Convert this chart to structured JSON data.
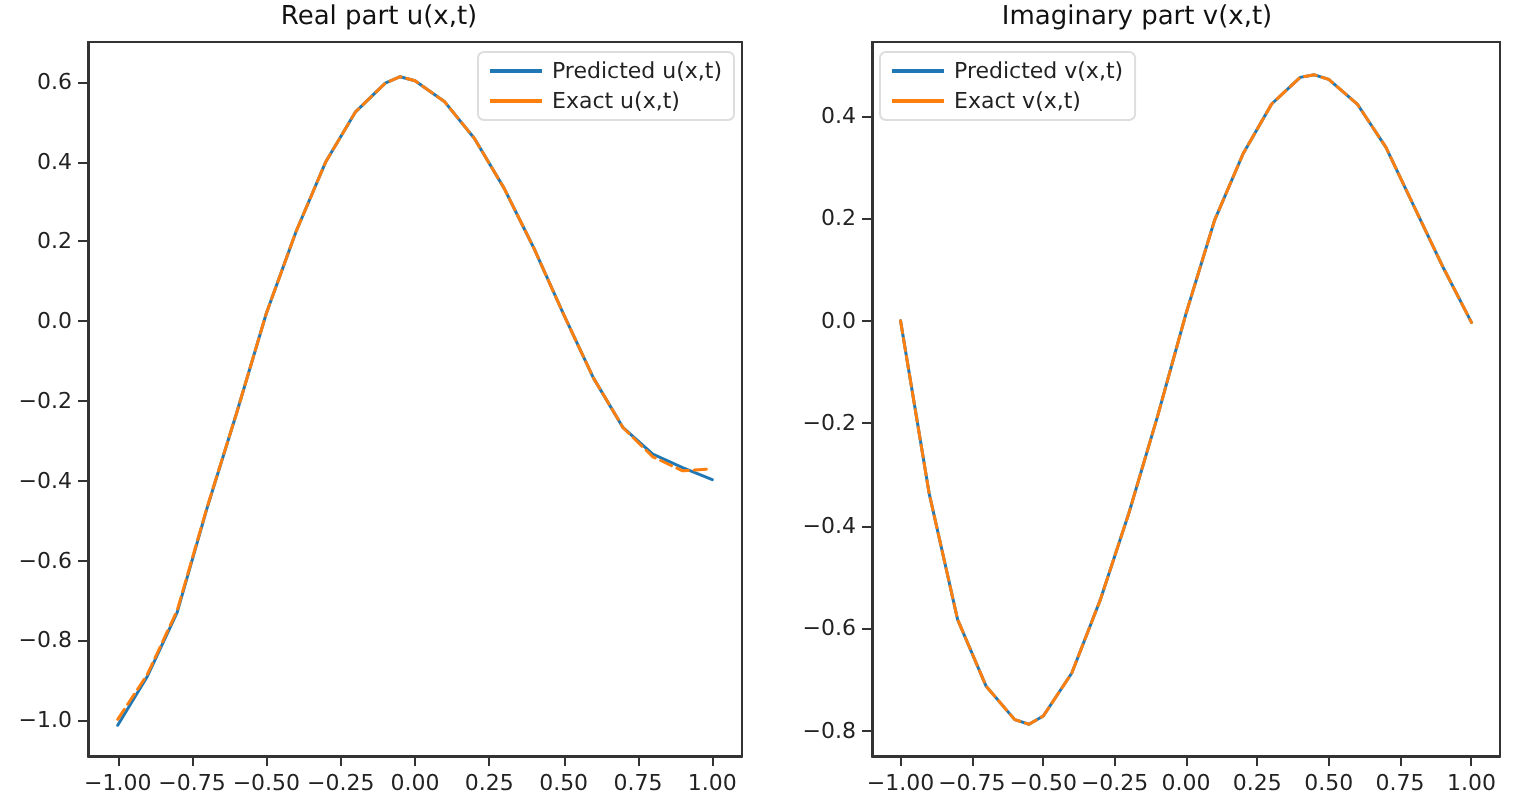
{
  "chart_data": [
    {
      "type": "line",
      "title": "Real part u(x,t)",
      "legend": "top right",
      "grid": false,
      "marker": "none",
      "xlim": [
        -1.1,
        1.1
      ],
      "ylim": [
        -1.09,
        0.7
      ],
      "xticks": [
        {
          "value": -1,
          "label": "−1.00"
        },
        {
          "value": -0.75,
          "label": "−0.75"
        },
        {
          "value": -0.5,
          "label": "−0.50"
        },
        {
          "value": -0.25,
          "label": "−0.25"
        },
        {
          "value": 0,
          "label": "0.00"
        },
        {
          "value": 0.25,
          "label": "0.25"
        },
        {
          "value": 0.5,
          "label": "0.50"
        },
        {
          "value": 0.75,
          "label": "0.75"
        },
        {
          "value": 1,
          "label": "1.00"
        }
      ],
      "yticks": [
        {
          "value": -1,
          "label": "−1.0"
        },
        {
          "value": -0.8,
          "label": "−0.8"
        },
        {
          "value": -0.6,
          "label": "−0.6"
        },
        {
          "value": -0.4,
          "label": "−0.4"
        },
        {
          "value": -0.2,
          "label": "−0.2"
        },
        {
          "value": 0,
          "label": "0.0"
        },
        {
          "value": 0.2,
          "label": "0.2"
        },
        {
          "value": 0.4,
          "label": "0.4"
        },
        {
          "value": 0.6,
          "label": "0.6"
        }
      ],
      "x": [
        -1,
        -0.9,
        -0.8,
        -0.7,
        -0.6,
        -0.5,
        -0.4,
        -0.3,
        -0.2,
        -0.1,
        -0.05,
        0,
        0.1,
        0.2,
        0.3,
        0.4,
        0.5,
        0.6,
        0.7,
        0.8,
        0.9,
        1
      ],
      "series": [
        {
          "name": "Predicted u(x,t)",
          "color": "#1f77b4",
          "line_style": "solid",
          "values": [
            -1.013,
            -0.89,
            -0.73,
            -0.47,
            -0.23,
            0.02,
            0.225,
            0.4,
            0.525,
            0.597,
            0.613,
            0.603,
            0.55,
            0.458,
            0.333,
            0.183,
            0.017,
            -0.142,
            -0.267,
            -0.333,
            -0.367,
            -0.397
          ]
        },
        {
          "name": "Exact u(x,t)",
          "color": "#ff7f0e",
          "line_style": "dashed",
          "values": [
            -0.998,
            -0.885,
            -0.725,
            -0.468,
            -0.23,
            0.02,
            0.225,
            0.4,
            0.525,
            0.597,
            0.613,
            0.603,
            0.55,
            0.458,
            0.333,
            0.183,
            0.017,
            -0.142,
            -0.267,
            -0.34,
            -0.375,
            -0.37
          ]
        }
      ]
    },
    {
      "type": "line",
      "title": "Imaginary part v(x,t)",
      "legend": "top left",
      "grid": false,
      "marker": "none",
      "xlim": [
        -1.1,
        1.1
      ],
      "ylim": [
        -0.849,
        0.544
      ],
      "xticks": [
        {
          "value": -1,
          "label": "−1.00"
        },
        {
          "value": -0.75,
          "label": "−0.75"
        },
        {
          "value": -0.5,
          "label": "−0.50"
        },
        {
          "value": -0.25,
          "label": "−0.25"
        },
        {
          "value": 0,
          "label": "0.00"
        },
        {
          "value": 0.25,
          "label": "0.25"
        },
        {
          "value": 0.5,
          "label": "0.50"
        },
        {
          "value": 0.75,
          "label": "0.75"
        },
        {
          "value": 1,
          "label": "1.00"
        }
      ],
      "yticks": [
        {
          "value": -0.8,
          "label": "−0.8"
        },
        {
          "value": -0.6,
          "label": "−0.6"
        },
        {
          "value": -0.4,
          "label": "−0.4"
        },
        {
          "value": -0.2,
          "label": "−0.2"
        },
        {
          "value": 0,
          "label": "0.0"
        },
        {
          "value": 0.2,
          "label": "0.2"
        },
        {
          "value": 0.4,
          "label": "0.4"
        }
      ],
      "x": [
        -1,
        -0.9,
        -0.8,
        -0.7,
        -0.6,
        -0.55,
        -0.5,
        -0.4,
        -0.3,
        -0.2,
        -0.1,
        0,
        0.1,
        0.2,
        0.3,
        0.4,
        0.45,
        0.5,
        0.6,
        0.7,
        0.8,
        0.9,
        1
      ],
      "series": [
        {
          "name": "Predicted v(x,t)",
          "color": "#1f77b4",
          "line_style": "solid",
          "values": [
            0,
            -0.336,
            -0.583,
            -0.713,
            -0.778,
            -0.787,
            -0.771,
            -0.687,
            -0.544,
            -0.375,
            -0.187,
            0.014,
            0.196,
            0.326,
            0.423,
            0.475,
            0.48,
            0.471,
            0.423,
            0.339,
            0.222,
            0.105,
            -0.003
          ]
        },
        {
          "name": "Exact v(x,t)",
          "color": "#ff7f0e",
          "line_style": "dashed",
          "values": [
            0,
            -0.336,
            -0.583,
            -0.713,
            -0.778,
            -0.787,
            -0.771,
            -0.687,
            -0.544,
            -0.375,
            -0.187,
            0.014,
            0.196,
            0.326,
            0.423,
            0.475,
            0.48,
            0.471,
            0.423,
            0.339,
            0.222,
            0.105,
            -0.003
          ]
        }
      ]
    }
  ]
}
